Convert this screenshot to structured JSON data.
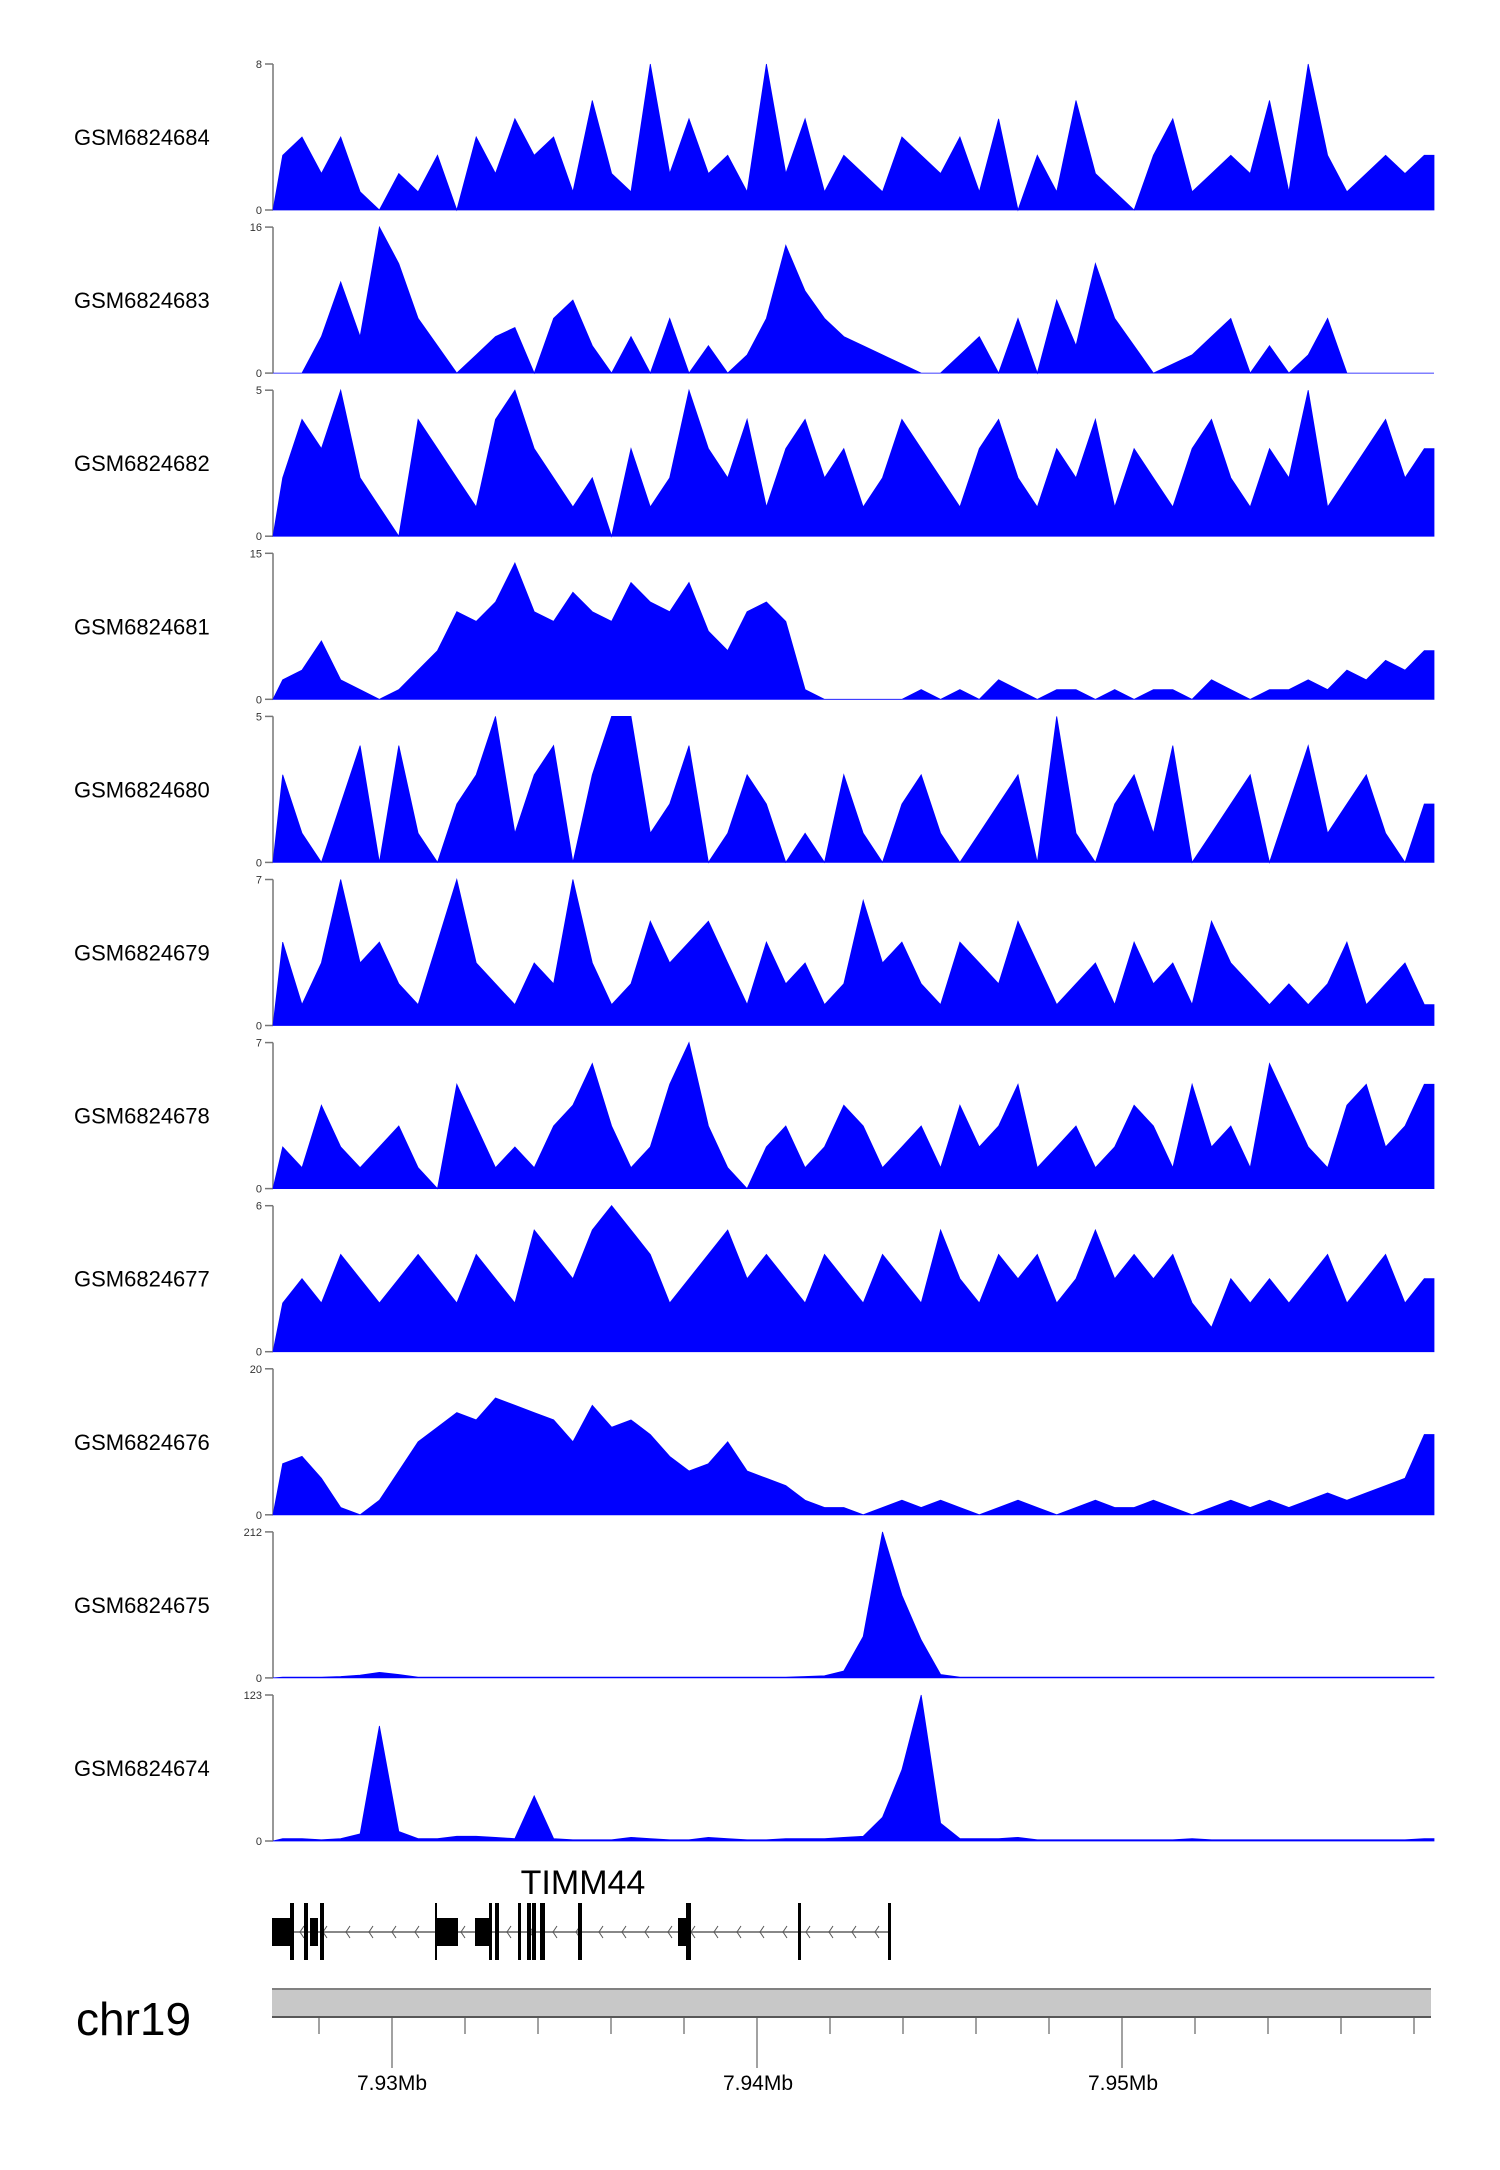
{
  "chart_data": {
    "type": "area",
    "title": "",
    "color": "#0000FF",
    "x_range_mb": [
      7.92671,
      7.95847
    ],
    "xlabel": "",
    "tracks": [
      {
        "name": "GSM6824684",
        "ymax_label": "8",
        "ymin_label": "0",
        "ylim": [
          0,
          8
        ],
        "values": [
          3,
          4,
          2,
          4,
          1,
          0,
          2,
          1,
          3,
          0,
          4,
          2,
          5,
          3,
          4,
          1,
          6,
          2,
          1,
          8,
          2,
          5,
          2,
          3,
          1,
          8,
          2,
          5,
          1,
          3,
          2,
          1,
          4,
          3,
          2,
          4,
          1,
          5,
          0,
          3,
          1,
          6,
          2,
          1,
          0,
          3,
          5,
          1,
          2,
          3,
          2,
          6,
          1,
          8,
          3,
          1,
          2,
          3,
          2,
          3
        ]
      },
      {
        "name": "GSM6824683",
        "ymax_label": "16",
        "ymin_label": "0",
        "ylim": [
          0,
          16
        ],
        "values": [
          0,
          0,
          4,
          10,
          4,
          16,
          12,
          6,
          3,
          0,
          2,
          4,
          5,
          0,
          6,
          8,
          3,
          0,
          4,
          0,
          6,
          0,
          3,
          0,
          2,
          6,
          14,
          9,
          6,
          4,
          3,
          2,
          1,
          0,
          0,
          2,
          4,
          0,
          6,
          0,
          8,
          3,
          12,
          6,
          3,
          0,
          1,
          2,
          4,
          6,
          0,
          3,
          0,
          2,
          6,
          0,
          0,
          0,
          0,
          0
        ]
      },
      {
        "name": "GSM6824682",
        "ymax_label": "5",
        "ymin_label": "0",
        "ylim": [
          0,
          5
        ],
        "values": [
          2,
          4,
          3,
          5,
          2,
          1,
          0,
          4,
          3,
          2,
          1,
          4,
          5,
          3,
          2,
          1,
          2,
          0,
          3,
          1,
          2,
          5,
          3,
          2,
          4,
          1,
          3,
          4,
          2,
          3,
          1,
          2,
          4,
          3,
          2,
          1,
          3,
          4,
          2,
          1,
          3,
          2,
          4,
          1,
          3,
          2,
          1,
          3,
          4,
          2,
          1,
          3,
          2,
          5,
          1,
          2,
          3,
          4,
          2,
          3
        ]
      },
      {
        "name": "GSM6824681",
        "ymax_label": "15",
        "ymin_label": "0",
        "ylim": [
          0,
          15
        ],
        "values": [
          2,
          3,
          6,
          2,
          1,
          0,
          1,
          3,
          5,
          9,
          8,
          10,
          14,
          9,
          8,
          11,
          9,
          8,
          12,
          10,
          9,
          12,
          7,
          5,
          9,
          10,
          8,
          1,
          0,
          0,
          0,
          0,
          0,
          1,
          0,
          1,
          0,
          2,
          1,
          0,
          1,
          1,
          0,
          1,
          0,
          1,
          1,
          0,
          2,
          1,
          0,
          1,
          1,
          2,
          1,
          3,
          2,
          4,
          3,
          5
        ]
      },
      {
        "name": "GSM6824680",
        "ymax_label": "5",
        "ymin_label": "0",
        "ylim": [
          0,
          5
        ],
        "values": [
          3,
          1,
          0,
          2,
          4,
          0,
          4,
          1,
          0,
          2,
          3,
          5,
          1,
          3,
          4,
          0,
          3,
          5,
          5,
          1,
          2,
          4,
          0,
          1,
          3,
          2,
          0,
          1,
          0,
          3,
          1,
          0,
          2,
          3,
          1,
          0,
          1,
          2,
          3,
          0,
          5,
          1,
          0,
          2,
          3,
          1,
          4,
          0,
          1,
          2,
          3,
          0,
          2,
          4,
          1,
          2,
          3,
          1,
          0,
          2
        ]
      },
      {
        "name": "GSM6824679",
        "ymax_label": "7",
        "ymin_label": "0",
        "ylim": [
          0,
          7
        ],
        "values": [
          4,
          1,
          3,
          7,
          3,
          4,
          2,
          1,
          4,
          7,
          3,
          2,
          1,
          3,
          2,
          7,
          3,
          1,
          2,
          5,
          3,
          4,
          5,
          3,
          1,
          4,
          2,
          3,
          1,
          2,
          6,
          3,
          4,
          2,
          1,
          4,
          3,
          2,
          5,
          3,
          1,
          2,
          3,
          1,
          4,
          2,
          3,
          1,
          5,
          3,
          2,
          1,
          2,
          1,
          2,
          4,
          1,
          2,
          3,
          1
        ]
      },
      {
        "name": "GSM6824678",
        "ymax_label": "7",
        "ymin_label": "0",
        "ylim": [
          0,
          7
        ],
        "values": [
          2,
          1,
          4,
          2,
          1,
          2,
          3,
          1,
          0,
          5,
          3,
          1,
          2,
          1,
          3,
          4,
          6,
          3,
          1,
          2,
          5,
          7,
          3,
          1,
          0,
          2,
          3,
          1,
          2,
          4,
          3,
          1,
          2,
          3,
          1,
          4,
          2,
          3,
          5,
          1,
          2,
          3,
          1,
          2,
          4,
          3,
          1,
          5,
          2,
          3,
          1,
          6,
          4,
          2,
          1,
          4,
          5,
          2,
          3,
          5
        ]
      },
      {
        "name": "GSM6824677",
        "ymax_label": "6",
        "ymin_label": "0",
        "ylim": [
          0,
          6
        ],
        "values": [
          2,
          3,
          2,
          4,
          3,
          2,
          3,
          4,
          3,
          2,
          4,
          3,
          2,
          5,
          4,
          3,
          5,
          6,
          5,
          4,
          2,
          3,
          4,
          5,
          3,
          4,
          3,
          2,
          4,
          3,
          2,
          4,
          3,
          2,
          5,
          3,
          2,
          4,
          3,
          4,
          2,
          3,
          5,
          3,
          4,
          3,
          4,
          2,
          1,
          3,
          2,
          3,
          2,
          3,
          4,
          2,
          3,
          4,
          2,
          3
        ]
      },
      {
        "name": "GSM6824676",
        "ymax_label": "20",
        "ymin_label": "0",
        "ylim": [
          0,
          20
        ],
        "values": [
          7,
          8,
          5,
          1,
          0,
          2,
          6,
          10,
          12,
          14,
          13,
          16,
          15,
          14,
          13,
          10,
          15,
          12,
          13,
          11,
          8,
          6,
          7,
          10,
          6,
          5,
          4,
          2,
          1,
          1,
          0,
          1,
          2,
          1,
          2,
          1,
          0,
          1,
          2,
          1,
          0,
          1,
          2,
          1,
          1,
          2,
          1,
          0,
          1,
          2,
          1,
          2,
          1,
          2,
          3,
          2,
          3,
          4,
          5,
          11
        ]
      },
      {
        "name": "GSM6824675",
        "ymax_label": "212",
        "ymin_label": "0",
        "ylim": [
          0,
          212
        ],
        "values": [
          1,
          1,
          1,
          2,
          4,
          8,
          5,
          1,
          1,
          1,
          1,
          1,
          1,
          1,
          1,
          1,
          1,
          1,
          1,
          1,
          1,
          1,
          1,
          1,
          1,
          1,
          1,
          2,
          3,
          10,
          60,
          212,
          120,
          55,
          5,
          1,
          1,
          1,
          1,
          1,
          1,
          1,
          1,
          1,
          1,
          1,
          1,
          1,
          1,
          1,
          1,
          1,
          1,
          1,
          1,
          1,
          1,
          1,
          1,
          1
        ]
      },
      {
        "name": "GSM6824674",
        "ymax_label": "123",
        "ymin_label": "0",
        "ylim": [
          0,
          123
        ],
        "values": [
          2,
          2,
          1,
          2,
          6,
          97,
          8,
          2,
          2,
          4,
          4,
          3,
          2,
          38,
          2,
          1,
          1,
          1,
          3,
          2,
          1,
          1,
          3,
          2,
          1,
          1,
          2,
          2,
          2,
          3,
          4,
          20,
          60,
          123,
          15,
          2,
          2,
          2,
          3,
          1,
          1,
          1,
          1,
          1,
          1,
          1,
          1,
          2,
          1,
          1,
          1,
          1,
          1,
          1,
          1,
          1,
          1,
          1,
          1,
          2
        ]
      }
    ],
    "gene": {
      "name": "TIMM44",
      "strand": "-"
    },
    "chromosome": "chr19",
    "x_tick_labels": [
      "7.93Mb",
      "7.94Mb",
      "7.95Mb"
    ]
  }
}
